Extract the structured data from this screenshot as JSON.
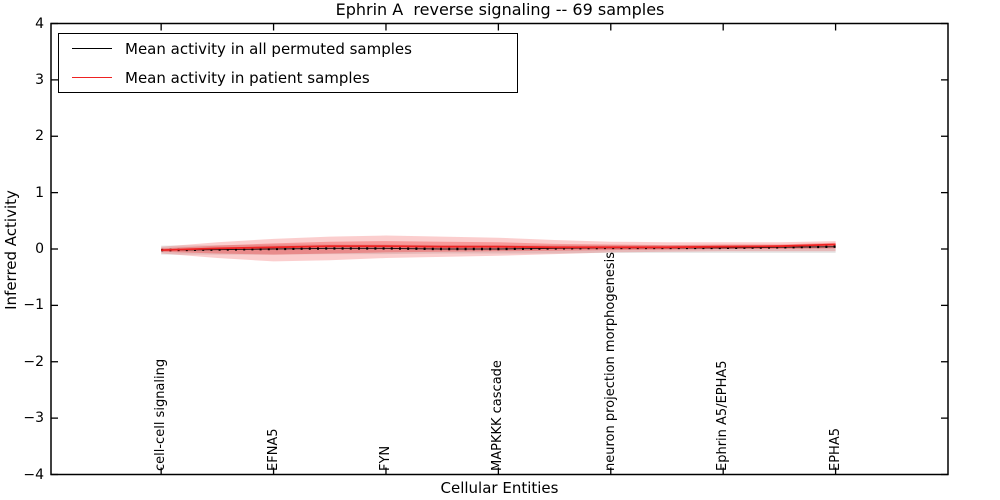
{
  "chart_data": {
    "type": "line",
    "title": "Ephrin A  reverse signaling -- 69 samples",
    "xlabel": "Cellular Entities",
    "ylabel": "Inferred Activity",
    "xlim": [
      -0.98,
      7.0
    ],
    "ylim": [
      -4,
      4
    ],
    "grid": false,
    "legend_position": "upper left",
    "y_tick_values": [
      4,
      3,
      2,
      1,
      0,
      -1,
      -2,
      -3,
      -4
    ],
    "y_tick_labels": [
      "4",
      "3",
      "2",
      "1",
      "0",
      "−1",
      "−2",
      "−3",
      "−4"
    ],
    "categories": [
      "cell-cell signaling",
      "EFNA5",
      "FYN",
      "MAPKKK cascade",
      "neuron projection morphogenesis",
      "Ephrin A5/EPHA5",
      "EPHA5"
    ],
    "category_positions": [
      0,
      1,
      2,
      3,
      4,
      5,
      6
    ],
    "x": [
      0,
      0.5,
      1,
      1.5,
      2,
      2.5,
      3,
      3.5,
      4,
      4.5,
      5,
      5.5,
      6
    ],
    "series": [
      {
        "name": "Mean activity in all permuted samples",
        "color": "#000000",
        "style": "solid-with-dot-markers",
        "values": [
          -0.02,
          -0.01,
          0.0,
          0.01,
          0.01,
          0.0,
          0.0,
          0.01,
          0.02,
          0.02,
          0.02,
          0.03,
          0.04
        ]
      },
      {
        "name": "Mean activity in patient samples",
        "color": "#ee2222",
        "style": "solid",
        "values": [
          -0.02,
          0.01,
          0.03,
          0.05,
          0.05,
          0.04,
          0.04,
          0.03,
          0.03,
          0.03,
          0.04,
          0.05,
          0.08
        ]
      }
    ],
    "bands": [
      {
        "name": "permuted-samples-std-band",
        "color": "#888888",
        "opacity": 0.22,
        "hi": [
          0.06,
          0.07,
          0.08,
          0.08,
          0.08,
          0.07,
          0.07,
          0.07,
          0.07,
          0.07,
          0.07,
          0.07,
          0.08
        ],
        "lo": [
          -0.1,
          -0.1,
          -0.1,
          -0.09,
          -0.09,
          -0.08,
          -0.08,
          -0.08,
          -0.07,
          -0.07,
          -0.07,
          -0.07,
          -0.07
        ]
      },
      {
        "name": "patient-samples-std-band-outer",
        "color": "#ee2222",
        "opacity": 0.22,
        "hi": [
          0.04,
          0.12,
          0.18,
          0.22,
          0.24,
          0.22,
          0.2,
          0.16,
          0.13,
          0.12,
          0.12,
          0.12,
          0.14
        ],
        "lo": [
          -0.08,
          -0.16,
          -0.22,
          -0.2,
          -0.16,
          -0.14,
          -0.12,
          -0.09,
          -0.06,
          -0.05,
          -0.04,
          -0.04,
          -0.04
        ]
      },
      {
        "name": "patient-samples-std-band-inner",
        "color": "#ee2222",
        "opacity": 0.3,
        "hi": [
          0.01,
          0.06,
          0.1,
          0.13,
          0.14,
          0.13,
          0.12,
          0.09,
          0.08,
          0.07,
          0.08,
          0.08,
          0.11
        ],
        "lo": [
          -0.05,
          -0.08,
          -0.1,
          -0.08,
          -0.06,
          -0.05,
          -0.04,
          -0.03,
          -0.02,
          -0.01,
          0.0,
          0.0,
          0.01
        ]
      }
    ],
    "legend": [
      {
        "label": "Mean activity in all permuted samples",
        "color": "#000000"
      },
      {
        "label": "Mean activity in patient samples",
        "color": "#ee2222"
      }
    ]
  }
}
